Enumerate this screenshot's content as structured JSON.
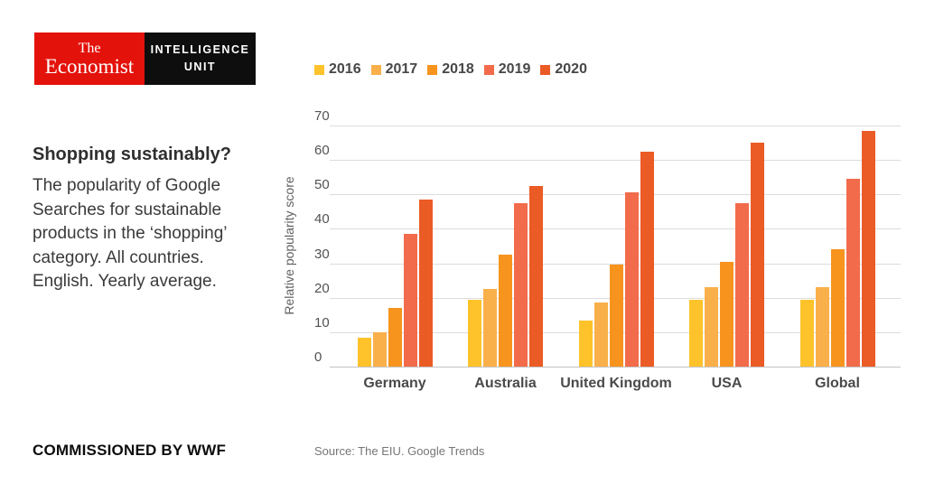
{
  "logo": {
    "masthead_line1": "The",
    "masthead_line2": "Economist",
    "unit_line1": "INTELLIGENCE",
    "unit_line2": "UNIT",
    "red": "#e3120b",
    "black": "#0e0e0e"
  },
  "panel": {
    "headline": "Shopping sustainably?",
    "description": "The popularity of Google\nSearches for sustainable\nproducts in the ‘shopping’\ncategory. All countries.\nEnglish. Yearly average.",
    "commissioned": "COMMISSIONED BY WWF",
    "source": "Source: The EIU. Google Trends"
  },
  "chart_data": {
    "type": "bar",
    "title": "",
    "xlabel": "",
    "ylabel": "Relative popularity score",
    "ylim": [
      0,
      70
    ],
    "ytick_step": 10,
    "grid": true,
    "legend_position": "top",
    "categories": [
      "Germany",
      "Australia",
      "United Kingdom",
      "USA",
      "Global"
    ],
    "series": [
      {
        "name": "2016",
        "color": "#fec32b",
        "values": [
          8.5,
          19.5,
          13.5,
          19.5,
          19.5
        ]
      },
      {
        "name": "2017",
        "color": "#f9b04a",
        "values": [
          10,
          22.5,
          18.5,
          23,
          23
        ]
      },
      {
        "name": "2018",
        "color": "#f7941e",
        "values": [
          17,
          32.5,
          29.5,
          30.5,
          34
        ]
      },
      {
        "name": "2019",
        "color": "#f26b4b",
        "values": [
          38.5,
          47.5,
          50.5,
          47.5,
          54.5
        ]
      },
      {
        "name": "2020",
        "color": "#eb5b25",
        "values": [
          48.5,
          52.5,
          62.5,
          65,
          68.5
        ]
      }
    ]
  }
}
